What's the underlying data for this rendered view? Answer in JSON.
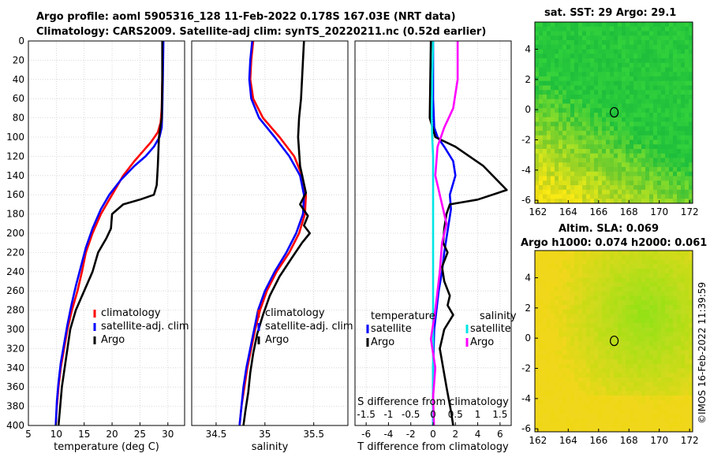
{
  "header": {
    "line1": "Argo profile: aoml 5905316_128 11-Feb-2022 0.178S 167.03E (NRT data)",
    "line2": "Climatology: CARS2009. Satellite-adj clim: synTS_20220211.nc (0.52d earlier)"
  },
  "map_sst": {
    "title": "sat. SST: 29 Argo: 29.1",
    "xticks": [
      "162",
      "164",
      "166",
      "168",
      "170",
      "172"
    ],
    "yticks": [
      "4",
      "2",
      "0",
      "-2",
      "-4",
      "-6"
    ]
  },
  "map_sla": {
    "title1": "Altim. SLA: 0.069",
    "title2": "Argo h1000: 0.074 h2000: 0.061",
    "xticks": [
      "162",
      "164",
      "166",
      "168",
      "170",
      "172"
    ],
    "yticks": [
      "4",
      "2",
      "0",
      "-2",
      "-4",
      "-6"
    ]
  },
  "stamp": "©IMOS 16-Feb-2022 11:39:59",
  "colors": {
    "climatology": "#ff0000",
    "satellite": "#0000ff",
    "argo": "#000000",
    "sat_t": "#00e5e5",
    "sat_s": "#ff00ff"
  },
  "chart_data": [
    {
      "type": "line",
      "title": "",
      "xlabel": "temperature (deg C)",
      "ylabel": "",
      "xlim": [
        5,
        33
      ],
      "ylim": [
        400,
        0
      ],
      "xticks": [
        5,
        10,
        15,
        20,
        25,
        30
      ],
      "yticks": [
        0,
        20,
        40,
        60,
        80,
        100,
        120,
        140,
        160,
        180,
        200,
        220,
        240,
        260,
        280,
        300,
        320,
        340,
        360,
        380,
        400
      ],
      "grid": true,
      "legend": {
        "position": "bottom-right",
        "entries": [
          "climatology",
          "satellite-adj. clim",
          "Argo"
        ]
      },
      "series": [
        {
          "name": "climatology",
          "color": "red",
          "x": [
            29.1,
            29.0,
            28.9,
            28.7,
            28.2,
            27.0,
            25.5,
            24.0,
            22.0,
            20.0,
            18.0,
            16.5,
            15.3,
            14.6,
            13.8,
            12.8,
            12.0,
            11.4,
            10.8,
            10.4,
            10.1,
            9.9
          ],
          "depth": [
            0,
            40,
            70,
            85,
            95,
            105,
            115,
            125,
            140,
            160,
            180,
            200,
            220,
            240,
            260,
            280,
            300,
            320,
            340,
            360,
            380,
            400
          ]
        },
        {
          "name": "satellite-adj. clim",
          "color": "blue",
          "x": [
            29.2,
            29.1,
            29.0,
            28.9,
            28.5,
            27.5,
            26.0,
            24.0,
            21.5,
            19.5,
            18.0,
            16.5,
            15.3,
            14.4,
            13.5,
            12.7,
            12.0,
            11.4,
            10.8,
            10.4,
            10.1,
            9.9
          ],
          "depth": [
            0,
            40,
            70,
            90,
            100,
            110,
            120,
            130,
            145,
            160,
            175,
            195,
            215,
            235,
            255,
            275,
            295,
            315,
            335,
            355,
            375,
            400
          ]
        },
        {
          "name": "Argo",
          "color": "black",
          "x": [
            29.0,
            29.0,
            28.9,
            28.4,
            28.2,
            28.0,
            27.5,
            25.0,
            22.0,
            20.0,
            19.8,
            19.0,
            17.5,
            16.5,
            15.0,
            13.5,
            12.5,
            12.0,
            11.5,
            11.0,
            10.7,
            10.4
          ],
          "depth": [
            0,
            40,
            80,
            100,
            130,
            150,
            160,
            165,
            170,
            180,
            195,
            205,
            220,
            240,
            260,
            280,
            300,
            320,
            340,
            360,
            380,
            400
          ]
        }
      ]
    },
    {
      "type": "line",
      "xlabel": "salinity",
      "xlim": [
        34.25,
        35.85
      ],
      "ylim": [
        400,
        0
      ],
      "xticks": [
        34.5,
        35,
        35.5
      ],
      "grid": true,
      "legend": {
        "position": "bottom-right",
        "entries": [
          "climatology",
          "satellite-adj. clim",
          "Argo"
        ]
      },
      "series": [
        {
          "name": "climatology",
          "color": "red",
          "x": [
            34.88,
            34.86,
            34.85,
            34.88,
            34.98,
            35.15,
            35.3,
            35.38,
            35.42,
            35.41,
            35.35,
            35.25,
            35.12,
            35.02,
            34.95,
            34.9,
            34.86,
            34.82,
            34.79,
            34.76,
            34.74
          ],
          "depth": [
            0,
            20,
            40,
            60,
            80,
            100,
            120,
            140,
            160,
            180,
            200,
            220,
            240,
            260,
            280,
            300,
            320,
            340,
            360,
            380,
            400
          ]
        },
        {
          "name": "satellite-adj. clim",
          "color": "blue",
          "x": [
            34.87,
            34.85,
            34.84,
            34.86,
            34.94,
            35.1,
            35.25,
            35.36,
            35.4,
            35.39,
            35.32,
            35.22,
            35.1,
            35.0,
            34.93,
            34.89,
            34.85,
            34.81,
            34.78,
            34.76,
            34.74
          ],
          "depth": [
            0,
            20,
            40,
            60,
            80,
            100,
            120,
            140,
            160,
            180,
            200,
            220,
            240,
            260,
            280,
            300,
            320,
            340,
            360,
            380,
            400
          ]
        },
        {
          "name": "Argo",
          "color": "black",
          "x": [
            35.4,
            35.39,
            35.38,
            35.37,
            35.35,
            35.34,
            35.36,
            35.42,
            35.36,
            35.44,
            35.4,
            35.46,
            35.38,
            35.28,
            35.15,
            35.05,
            34.98,
            34.92,
            34.88,
            34.85,
            34.83,
            34.8,
            34.78
          ],
          "depth": [
            0,
            20,
            40,
            60,
            80,
            100,
            130,
            158,
            170,
            182,
            192,
            200,
            210,
            225,
            245,
            265,
            285,
            305,
            325,
            345,
            365,
            385,
            400
          ]
        }
      ]
    },
    {
      "type": "line",
      "xlabel": "T difference from climatology",
      "x2label": "S difference from climatology",
      "xlim": [
        -7,
        7
      ],
      "x2lim": [
        -1.75,
        1.75
      ],
      "ylim": [
        400,
        0
      ],
      "xticks": [
        -6,
        -4,
        -2,
        0,
        2,
        4,
        6
      ],
      "x2ticks": [
        -1.5,
        -1,
        -0.5,
        0,
        0.5,
        1,
        1.5
      ],
      "grid": true,
      "legend": {
        "position": "bottom",
        "entries": [
          "temperature",
          "satellite",
          "Argo",
          "salinity",
          "satellite",
          "Argo"
        ]
      },
      "series": [
        {
          "name": "temperature satellite",
          "color": "blue",
          "axis": "T",
          "x": [
            0.0,
            0.0,
            0.1,
            0.4,
            1.0,
            1.8,
            2.0,
            1.5,
            1.6,
            1.4,
            1.2,
            1.0,
            0.8,
            0.5,
            0.3,
            0.1,
            0.0,
            0.0
          ],
          "depth": [
            0,
            60,
            90,
            100,
            110,
            125,
            140,
            160,
            175,
            190,
            205,
            220,
            240,
            260,
            280,
            300,
            340,
            400
          ]
        },
        {
          "name": "temperature Argo",
          "color": "black",
          "axis": "T",
          "x": [
            -0.2,
            -0.3,
            0.2,
            2.0,
            4.5,
            6.6,
            4.0,
            1.5,
            1.2,
            1.0,
            0.9,
            1.3,
            0.8,
            1.0,
            1.5,
            1.3,
            1.8,
            1.0,
            0.6,
            0.9,
            1.2,
            1.6,
            1.8
          ],
          "depth": [
            0,
            80,
            100,
            110,
            130,
            155,
            165,
            170,
            180,
            195,
            210,
            220,
            235,
            250,
            265,
            275,
            285,
            300,
            320,
            340,
            360,
            385,
            400
          ]
        },
        {
          "name": "salinity satellite",
          "color": "cyan",
          "axis": "S",
          "x": [
            0.0,
            -0.02,
            -0.03,
            -0.02,
            0.0,
            0.0,
            0.0,
            0.0,
            0.0,
            0.0
          ],
          "depth": [
            0,
            40,
            80,
            100,
            120,
            160,
            200,
            260,
            320,
            400
          ]
        },
        {
          "name": "salinity Argo",
          "color": "magenta",
          "axis": "S",
          "x": [
            0.55,
            0.55,
            0.45,
            0.25,
            0.1,
            0.05,
            0.2,
            0.3,
            0.2,
            0.15,
            0.05,
            -0.05,
            0.05,
            0.0,
            0.02
          ],
          "depth": [
            0,
            40,
            70,
            90,
            110,
            140,
            170,
            190,
            210,
            240,
            280,
            310,
            340,
            370,
            400
          ]
        }
      ]
    }
  ]
}
